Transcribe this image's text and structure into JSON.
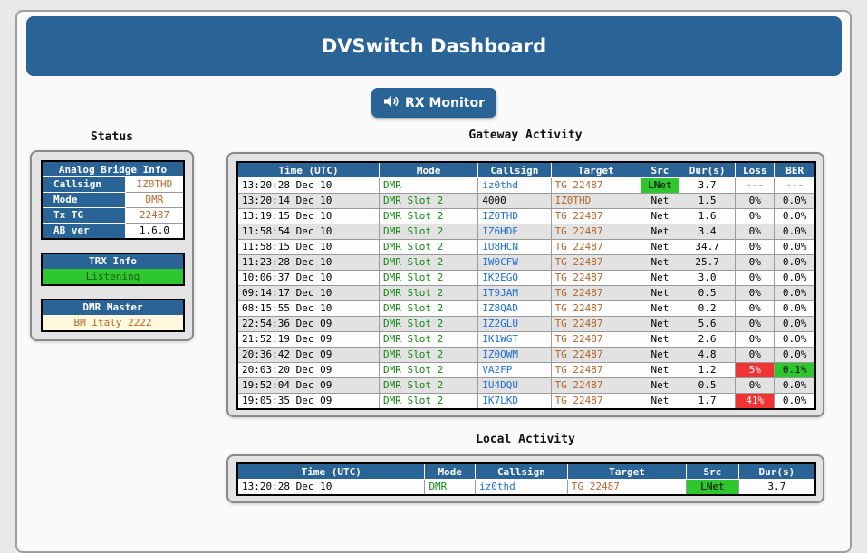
{
  "title": "DVSwitch Dashboard",
  "rx_button": {
    "icon": "speaker-icon",
    "label": "RX Monitor"
  },
  "status": {
    "heading": "Status",
    "analog_bridge": {
      "header": "Analog Bridge Info",
      "rows": [
        {
          "key": "Callsign",
          "value": "IZ0THD"
        },
        {
          "key": "Mode",
          "value": "DMR"
        },
        {
          "key": "Tx TG",
          "value": "22487"
        },
        {
          "key": "AB ver",
          "value": "1.6.0"
        }
      ]
    },
    "trx": {
      "header": "TRX Info",
      "value": "Listening",
      "color": "#2ec82e"
    },
    "dmr_master": {
      "header": "DMR Master",
      "value": "BM Italy 2222",
      "color": "#fff8dc"
    }
  },
  "gateway": {
    "heading": "Gateway Activity",
    "columns": [
      "Time (UTC)",
      "Mode",
      "Callsign",
      "Target",
      "Src",
      "Dur(s)",
      "Loss",
      "BER"
    ],
    "rows": [
      [
        "13:20:28 Dec 10",
        "DMR",
        "iz0thd",
        "TG 22487",
        "LNet",
        "3.7",
        "---",
        "---"
      ],
      [
        "13:20:14 Dec 10",
        "DMR Slot 2",
        "4000",
        "IZ0THD",
        "Net",
        "1.5",
        "0%",
        "0.0%"
      ],
      [
        "13:19:15 Dec 10",
        "DMR Slot 2",
        "IZ0THD",
        "TG 22487",
        "Net",
        "1.6",
        "0%",
        "0.0%"
      ],
      [
        "11:58:54 Dec 10",
        "DMR Slot 2",
        "IZ6HDE",
        "TG 22487",
        "Net",
        "3.4",
        "0%",
        "0.0%"
      ],
      [
        "11:58:15 Dec 10",
        "DMR Slot 2",
        "IU8HCN",
        "TG 22487",
        "Net",
        "34.7",
        "0%",
        "0.0%"
      ],
      [
        "11:23:28 Dec 10",
        "DMR Slot 2",
        "IW0CFW",
        "TG 22487",
        "Net",
        "25.7",
        "0%",
        "0.0%"
      ],
      [
        "10:06:37 Dec 10",
        "DMR Slot 2",
        "IK2EGQ",
        "TG 22487",
        "Net",
        "3.0",
        "0%",
        "0.0%"
      ],
      [
        "09:14:17 Dec 10",
        "DMR Slot 2",
        "IT9JAM",
        "TG 22487",
        "Net",
        "0.5",
        "0%",
        "0.0%"
      ],
      [
        "08:15:55 Dec 10",
        "DMR Slot 2",
        "IZ8QAD",
        "TG 22487",
        "Net",
        "0.2",
        "0%",
        "0.0%"
      ],
      [
        "22:54:36 Dec 09",
        "DMR Slot 2",
        "IZ2GLU",
        "TG 22487",
        "Net",
        "5.6",
        "0%",
        "0.0%"
      ],
      [
        "21:52:19 Dec 09",
        "DMR Slot 2",
        "IK1WGT",
        "TG 22487",
        "Net",
        "2.6",
        "0%",
        "0.0%"
      ],
      [
        "20:36:42 Dec 09",
        "DMR Slot 2",
        "IZ0OWM",
        "TG 22487",
        "Net",
        "4.8",
        "0%",
        "0.0%"
      ],
      [
        "20:03:20 Dec 09",
        "DMR Slot 2",
        "VA2FP",
        "TG 22487",
        "Net",
        "1.2",
        "5%",
        "0.1%"
      ],
      [
        "19:52:04 Dec 09",
        "DMR Slot 2",
        "IU4DQU",
        "TG 22487",
        "Net",
        "0.5",
        "0%",
        "0.0%"
      ],
      [
        "19:05:35 Dec 09",
        "DMR Slot 2",
        "IK7LKD",
        "TG 22487",
        "Net",
        "1.7",
        "41%",
        "0.0%"
      ]
    ]
  },
  "local": {
    "heading": "Local Activity",
    "columns": [
      "Time (UTC)",
      "Mode",
      "Callsign",
      "Target",
      "Src",
      "Dur(s)"
    ],
    "rows": [
      [
        "13:20:28 Dec 10",
        "DMR",
        "iz0thd",
        "TG 22487",
        "LNet",
        "3.7"
      ]
    ]
  },
  "colors": {
    "header_blue": "#2a6496",
    "alert_red": "#f03434",
    "ok_green": "#2ec82e"
  }
}
